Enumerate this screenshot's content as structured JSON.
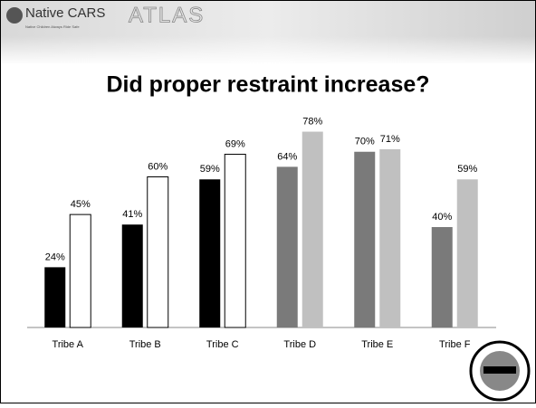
{
  "header": {
    "brand": "Native CARS",
    "tagline": "Native Children Always Ride Safe",
    "product": "ATLAS"
  },
  "chart_data": {
    "type": "bar",
    "title": "Did proper restraint increase?",
    "categories": [
      "Tribe A",
      "Tribe B",
      "Tribe C",
      "Tribe D",
      "Tribe E",
      "Tribe F"
    ],
    "ylim": [
      0,
      80
    ],
    "series": [
      {
        "colors": [
          "#000000",
          "#000000",
          "#000000",
          "#7a7a7a",
          "#7a7a7a",
          "#7a7a7a"
        ],
        "values": [
          24,
          41,
          59,
          64,
          70,
          40
        ],
        "value_labels": [
          "24%",
          "41%",
          "59%",
          "64%",
          "70%",
          "40%"
        ]
      },
      {
        "colors": [
          "#ffffff",
          "#ffffff",
          "#ffffff",
          "#c0c0c0",
          "#c0c0c0",
          "#c0c0c0"
        ],
        "values": [
          45,
          60,
          69,
          78,
          71,
          59
        ],
        "value_labels": [
          "45%",
          "60%",
          "69%",
          "78%",
          "71%",
          "59%"
        ]
      }
    ]
  }
}
